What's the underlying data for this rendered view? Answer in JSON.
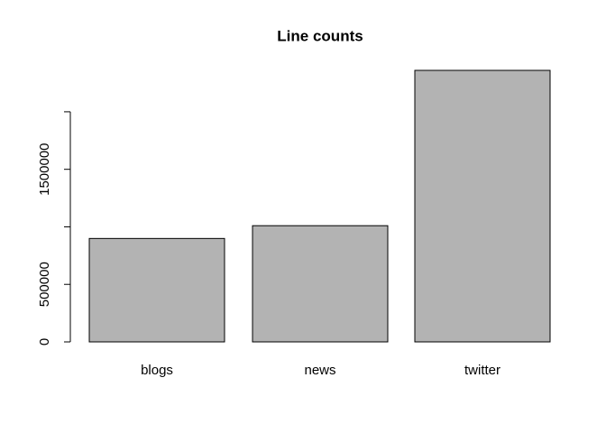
{
  "chart_data": {
    "type": "bar",
    "title": "Line counts",
    "categories": [
      "blogs",
      "news",
      "twitter"
    ],
    "values": [
      899000,
      1010000,
      2360000
    ],
    "color": "#b3b3b3",
    "ylim": [
      0,
      2360000
    ],
    "yticks": [
      0,
      500000,
      {
        "value": 1000000,
        "label": null
      },
      1500000,
      {
        "value": 2000000,
        "label": null
      }
    ]
  }
}
